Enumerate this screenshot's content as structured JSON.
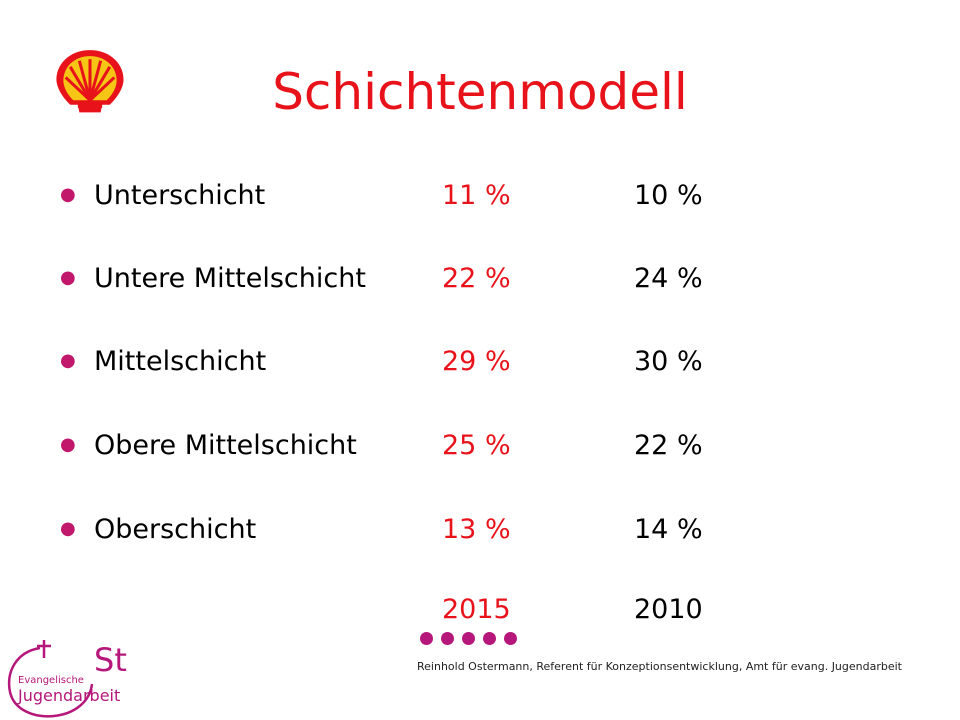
{
  "slide": {
    "title": "Schichtenmodell",
    "rows": [
      {
        "label": "Unterschicht",
        "v2015": "11 %",
        "v2010": "10 %"
      },
      {
        "label": "Untere Mittelschicht",
        "v2015": "22 %",
        "v2010": "24 %"
      },
      {
        "label": "Mittelschicht",
        "v2015": "29 %",
        "v2010": "30 %"
      },
      {
        "label": "Obere Mittelschicht",
        "v2015": "25 %",
        "v2010": "22 %"
      },
      {
        "label": "Oberschicht",
        "v2015": "13 %",
        "v2010": "14 %"
      }
    ],
    "year_a": "2015",
    "year_b": "2010",
    "st_text": "St",
    "footer": "Reinhold Ostermann, Referent für Konzeptionsentwicklung, Amt für evang. Jugendarbeit",
    "logo_text_small": "Evangelische",
    "logo_text_big": "Jugendarbeit"
  },
  "colors": {
    "title": "#e8121b",
    "accent": "#b5177a",
    "bullet": "#c2186b"
  },
  "icons": {
    "top_left": "shell-logo-icon",
    "bottom_left": "evangelische-jugendarbeit-logo-icon"
  }
}
